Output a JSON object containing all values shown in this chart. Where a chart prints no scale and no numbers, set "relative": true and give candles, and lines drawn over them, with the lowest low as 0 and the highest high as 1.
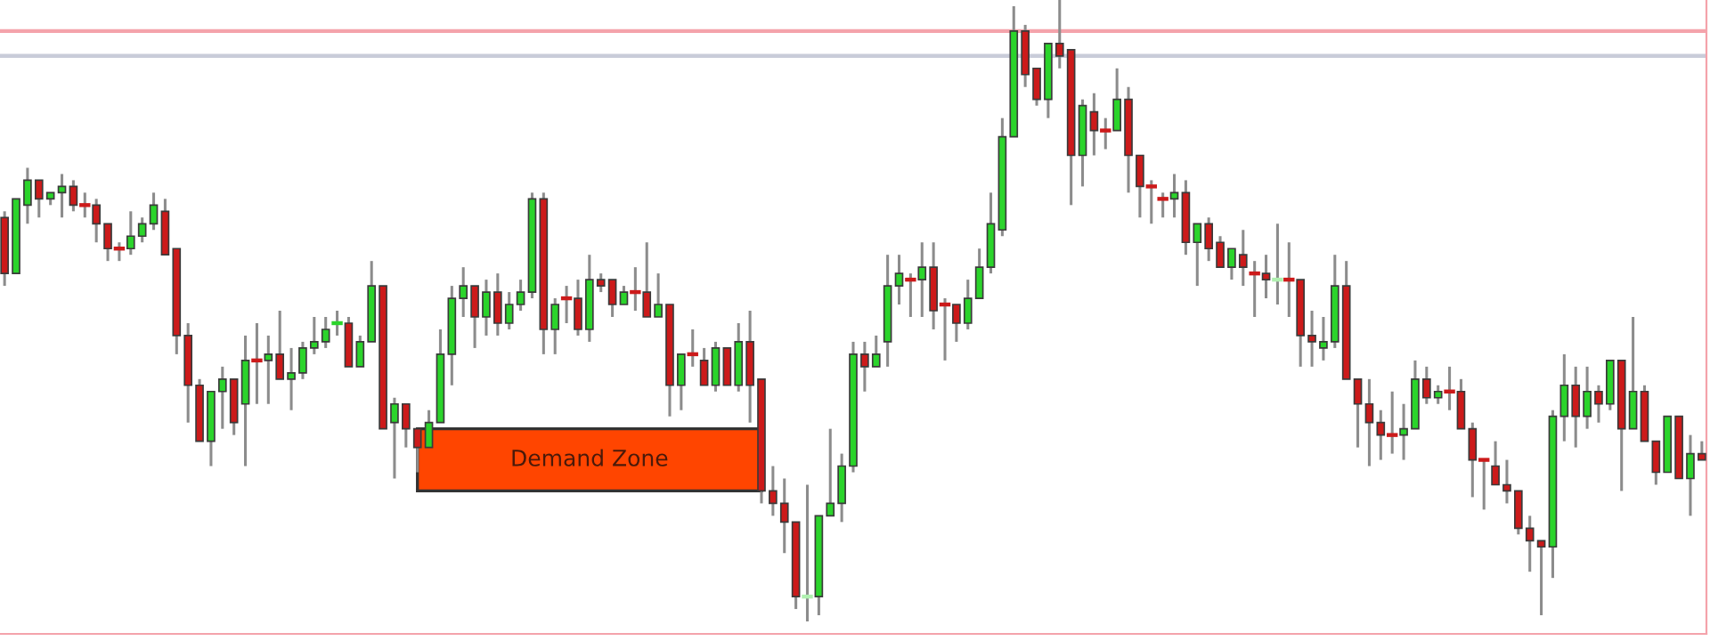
{
  "chart_data": {
    "type": "candlestick",
    "relative": true,
    "categories": [
      null,
      null,
      null,
      null,
      null,
      null,
      null,
      null,
      null,
      null,
      null,
      null,
      null,
      null,
      null,
      null,
      null,
      null,
      null,
      null,
      null,
      null,
      null,
      null,
      null,
      null,
      null,
      null,
      null,
      null,
      null,
      null,
      null,
      null,
      null,
      null,
      null,
      null,
      null,
      null,
      null,
      null,
      null,
      null,
      null,
      null,
      null,
      null,
      null,
      null,
      null,
      null,
      null,
      null,
      null,
      null,
      null,
      null,
      null,
      null,
      null,
      null,
      null,
      null,
      null,
      null,
      null,
      null,
      null,
      null,
      null,
      null,
      null,
      null,
      null,
      null,
      null,
      null,
      null,
      null,
      null,
      null,
      null,
      null,
      null,
      null,
      null,
      null,
      null,
      null,
      null,
      null,
      null,
      null,
      null,
      null,
      null,
      null,
      null,
      null,
      null,
      null,
      null,
      null,
      null,
      null,
      null,
      null,
      null,
      null,
      null,
      null,
      null,
      null,
      null,
      null,
      null,
      null,
      null,
      null,
      null,
      null,
      null,
      null,
      null,
      null,
      null,
      null,
      null,
      null,
      null,
      null,
      null,
      null,
      null,
      null,
      null,
      null,
      null,
      null,
      null,
      null,
      null,
      null,
      null,
      null,
      null,
      null,
      null
    ],
    "ohlc": [
      [
        0.65,
        0.66,
        0.54,
        0.56
      ],
      [
        0.56,
        0.68,
        0.56,
        0.68
      ],
      [
        0.67,
        0.73,
        0.64,
        0.71
      ],
      [
        0.71,
        0.71,
        0.65,
        0.68
      ],
      [
        0.68,
        0.69,
        0.67,
        0.69
      ],
      [
        0.69,
        0.72,
        0.65,
        0.7
      ],
      [
        0.7,
        0.71,
        0.66,
        0.67
      ],
      [
        0.67,
        0.69,
        0.65,
        0.67
      ],
      [
        0.67,
        0.68,
        0.61,
        0.64
      ],
      [
        0.64,
        0.64,
        0.58,
        0.6
      ],
      [
        0.6,
        0.61,
        0.58,
        0.6
      ],
      [
        0.6,
        0.66,
        0.59,
        0.62
      ],
      [
        0.62,
        0.65,
        0.61,
        0.64
      ],
      [
        0.64,
        0.69,
        0.63,
        0.67
      ],
      [
        0.66,
        0.68,
        0.59,
        0.59
      ],
      [
        0.6,
        0.6,
        0.43,
        0.46
      ],
      [
        0.46,
        0.48,
        0.32,
        0.38
      ],
      [
        0.38,
        0.39,
        0.29,
        0.29
      ],
      [
        0.29,
        0.37,
        0.25,
        0.37
      ],
      [
        0.37,
        0.41,
        0.31,
        0.39
      ],
      [
        0.39,
        0.39,
        0.3,
        0.32
      ],
      [
        0.35,
        0.46,
        0.25,
        0.42
      ],
      [
        0.42,
        0.48,
        0.35,
        0.42
      ],
      [
        0.42,
        0.46,
        0.35,
        0.43
      ],
      [
        0.43,
        0.5,
        0.39,
        0.39
      ],
      [
        0.39,
        0.44,
        0.34,
        0.4
      ],
      [
        0.4,
        0.45,
        0.39,
        0.44
      ],
      [
        0.44,
        0.49,
        0.43,
        0.45
      ],
      [
        0.45,
        0.49,
        0.44,
        0.47
      ],
      [
        0.48,
        0.5,
        0.46,
        0.48
      ],
      [
        0.48,
        0.49,
        0.41,
        0.41
      ],
      [
        0.41,
        0.46,
        0.41,
        0.45
      ],
      [
        0.45,
        0.58,
        0.45,
        0.54
      ],
      [
        0.54,
        0.54,
        0.31,
        0.31
      ],
      [
        0.32,
        0.36,
        0.23,
        0.35
      ],
      [
        0.35,
        0.35,
        0.28,
        0.31
      ],
      [
        0.31,
        0.31,
        0.24,
        0.28
      ],
      [
        0.28,
        0.34,
        0.28,
        0.32
      ],
      [
        0.32,
        0.47,
        0.32,
        0.43
      ],
      [
        0.43,
        0.54,
        0.38,
        0.52
      ],
      [
        0.52,
        0.57,
        0.49,
        0.54
      ],
      [
        0.54,
        0.54,
        0.44,
        0.49
      ],
      [
        0.49,
        0.55,
        0.46,
        0.53
      ],
      [
        0.53,
        0.56,
        0.46,
        0.48
      ],
      [
        0.48,
        0.53,
        0.47,
        0.51
      ],
      [
        0.51,
        0.55,
        0.5,
        0.53
      ],
      [
        0.53,
        0.69,
        0.52,
        0.68
      ],
      [
        0.68,
        0.69,
        0.43,
        0.47
      ],
      [
        0.47,
        0.52,
        0.43,
        0.51
      ],
      [
        0.52,
        0.54,
        0.48,
        0.52
      ],
      [
        0.52,
        0.55,
        0.46,
        0.47
      ],
      [
        0.47,
        0.59,
        0.45,
        0.55
      ],
      [
        0.55,
        0.56,
        0.53,
        0.54
      ],
      [
        0.55,
        0.55,
        0.49,
        0.51
      ],
      [
        0.51,
        0.54,
        0.51,
        0.53
      ],
      [
        0.53,
        0.57,
        0.5,
        0.53
      ],
      [
        0.53,
        0.61,
        0.49,
        0.49
      ],
      [
        0.49,
        0.56,
        0.49,
        0.51
      ],
      [
        0.51,
        0.51,
        0.33,
        0.38
      ],
      [
        0.38,
        0.43,
        0.34,
        0.43
      ],
      [
        0.43,
        0.47,
        0.41,
        0.43
      ],
      [
        0.42,
        0.44,
        0.38,
        0.38
      ],
      [
        0.38,
        0.45,
        0.37,
        0.44
      ],
      [
        0.44,
        0.44,
        0.38,
        0.38
      ],
      [
        0.38,
        0.48,
        0.37,
        0.45
      ],
      [
        0.45,
        0.5,
        0.32,
        0.38
      ],
      [
        0.39,
        0.39,
        0.19,
        0.21
      ],
      [
        0.21,
        0.25,
        0.17,
        0.19
      ],
      [
        0.19,
        0.23,
        0.11,
        0.16
      ],
      [
        0.16,
        0.16,
        0.02,
        0.04
      ],
      [
        0.04,
        0.22,
        0,
        0.04
      ],
      [
        0.04,
        0.17,
        0.01,
        0.17
      ],
      [
        0.17,
        0.31,
        0.17,
        0.19
      ],
      [
        0.19,
        0.27,
        0.16,
        0.25
      ],
      [
        0.25,
        0.45,
        0.24,
        0.43
      ],
      [
        0.43,
        0.45,
        0.37,
        0.41
      ],
      [
        0.41,
        0.46,
        0.41,
        0.43
      ],
      [
        0.45,
        0.59,
        0.41,
        0.54
      ],
      [
        0.54,
        0.59,
        0.51,
        0.56
      ],
      [
        0.55,
        0.56,
        0.49,
        0.55
      ],
      [
        0.55,
        0.61,
        0.49,
        0.57
      ],
      [
        0.57,
        0.61,
        0.47,
        0.5
      ],
      [
        0.51,
        0.52,
        0.42,
        0.51
      ],
      [
        0.51,
        0.51,
        0.45,
        0.48
      ],
      [
        0.48,
        0.55,
        0.47,
        0.52
      ],
      [
        0.52,
        0.6,
        0.52,
        0.57
      ],
      [
        0.57,
        0.69,
        0.56,
        0.64
      ],
      [
        0.63,
        0.81,
        0.62,
        0.78
      ],
      [
        0.78,
        0.99,
        0.78,
        0.95
      ],
      [
        0.95,
        0.96,
        0.86,
        0.88
      ],
      [
        0.89,
        0.89,
        0.83,
        0.84
      ],
      [
        0.84,
        0.93,
        0.81,
        0.93
      ],
      [
        0.93,
        1,
        0.89,
        0.91
      ],
      [
        0.92,
        0.92,
        0.67,
        0.75
      ],
      [
        0.75,
        0.84,
        0.7,
        0.83
      ],
      [
        0.82,
        0.85,
        0.75,
        0.79
      ],
      [
        0.79,
        0.81,
        0.76,
        0.79
      ],
      [
        0.79,
        0.89,
        0.79,
        0.84
      ],
      [
        0.84,
        0.86,
        0.69,
        0.75
      ],
      [
        0.75,
        0.75,
        0.65,
        0.7
      ],
      [
        0.7,
        0.71,
        0.64,
        0.7
      ],
      [
        0.68,
        0.69,
        0.65,
        0.68
      ],
      [
        0.68,
        0.72,
        0.65,
        0.69
      ],
      [
        0.69,
        0.71,
        0.59,
        0.61
      ],
      [
        0.61,
        0.64,
        0.54,
        0.64
      ],
      [
        0.64,
        0.65,
        0.58,
        0.6
      ],
      [
        0.61,
        0.62,
        0.57,
        0.57
      ],
      [
        0.57,
        0.6,
        0.55,
        0.6
      ],
      [
        0.59,
        0.63,
        0.54,
        0.57
      ],
      [
        0.56,
        0.58,
        0.49,
        0.56
      ],
      [
        0.56,
        0.59,
        0.52,
        0.55
      ],
      [
        0.55,
        0.64,
        0.51,
        0.55
      ],
      [
        0.55,
        0.61,
        0.49,
        0.55
      ],
      [
        0.55,
        0.55,
        0.41,
        0.46
      ],
      [
        0.46,
        0.5,
        0.41,
        0.45
      ],
      [
        0.44,
        0.49,
        0.42,
        0.45
      ],
      [
        0.45,
        0.59,
        0.44,
        0.54
      ],
      [
        0.54,
        0.58,
        0.39,
        0.39
      ],
      [
        0.39,
        0.39,
        0.28,
        0.35
      ],
      [
        0.35,
        0.39,
        0.25,
        0.32
      ],
      [
        0.32,
        0.34,
        0.26,
        0.3
      ],
      [
        0.3,
        0.37,
        0.27,
        0.3
      ],
      [
        0.3,
        0.35,
        0.26,
        0.31
      ],
      [
        0.31,
        0.42,
        0.31,
        0.39
      ],
      [
        0.39,
        0.41,
        0.35,
        0.36
      ],
      [
        0.36,
        0.38,
        0.35,
        0.37
      ],
      [
        0.37,
        0.41,
        0.34,
        0.37
      ],
      [
        0.37,
        0.39,
        0.31,
        0.31
      ],
      [
        0.31,
        0.32,
        0.2,
        0.26
      ],
      [
        0.26,
        0.26,
        0.18,
        0.26
      ],
      [
        0.25,
        0.29,
        0.22,
        0.22
      ],
      [
        0.22,
        0.26,
        0.19,
        0.21
      ],
      [
        0.21,
        0.21,
        0.14,
        0.15
      ],
      [
        0.15,
        0.17,
        0.08,
        0.13
      ],
      [
        0.13,
        0.13,
        0.01,
        0.12
      ],
      [
        0.12,
        0.34,
        0.07,
        0.33
      ],
      [
        0.33,
        0.43,
        0.29,
        0.38
      ],
      [
        0.38,
        0.41,
        0.28,
        0.33
      ],
      [
        0.33,
        0.41,
        0.31,
        0.37
      ],
      [
        0.37,
        0.38,
        0.32,
        0.35
      ],
      [
        0.35,
        0.42,
        0.34,
        0.42
      ],
      [
        0.42,
        0.42,
        0.21,
        0.31
      ],
      [
        0.31,
        0.49,
        0.31,
        0.37
      ],
      [
        0.37,
        0.38,
        0.29,
        0.29
      ],
      [
        0.29,
        0.29,
        0.22,
        0.24
      ],
      [
        0.24,
        0.33,
        0.24,
        0.33
      ],
      [
        0.33,
        0.33,
        0.23,
        0.23
      ],
      [
        0.23,
        0.3,
        0.17,
        0.27
      ],
      [
        0.27,
        0.29,
        0.26,
        0.26
      ]
    ],
    "colors": [
      "#cc1a1a",
      "#2bd42b",
      "#2bd42b",
      "#cc1a1a",
      "#2bd42b",
      "#2bd42b",
      "#cc1a1a",
      "#cc1a1a",
      "#cc1a1a",
      "#cc1a1a",
      "#cc1a1a",
      "#2bd42b",
      "#2bd42b",
      "#2bd42b",
      "#cc1a1a",
      "#cc1a1a",
      "#cc1a1a",
      "#cc1a1a",
      "#2bd42b",
      "#2bd42b",
      "#cc1a1a",
      "#2bd42b",
      "#cc1a1a",
      "#2bd42b",
      "#cc1a1a",
      "#2bd42b",
      "#2bd42b",
      "#2bd42b",
      "#2bd42b",
      "#2bd42b",
      "#cc1a1a",
      "#2bd42b",
      "#2bd42b",
      "#cc1a1a",
      "#2bd42b",
      "#cc1a1a",
      "#cc1a1a",
      "#2bd42b",
      "#2bd42b",
      "#2bd42b",
      "#2bd42b",
      "#cc1a1a",
      "#2bd42b",
      "#cc1a1a",
      "#2bd42b",
      "#2bd42b",
      "#2bd42b",
      "#cc1a1a",
      "#2bd42b",
      "#cc1a1a",
      "#cc1a1a",
      "#2bd42b",
      "#cc1a1a",
      "#cc1a1a",
      "#2bd42b",
      "#cc1a1a",
      "#cc1a1a",
      "#2bd42b",
      "#cc1a1a",
      "#2bd42b",
      "#cc1a1a",
      "#cc1a1a",
      "#2bd42b",
      "#cc1a1a",
      "#2bd42b",
      "#cc1a1a",
      "#cc1a1a",
      "#cc1a1a",
      "#cc1a1a",
      "#cc1a1a",
      "#b0f0b0",
      "#2bd42b",
      "#2bd42b",
      "#2bd42b",
      "#2bd42b",
      "#cc1a1a",
      "#2bd42b",
      "#2bd42b",
      "#2bd42b",
      "#cc1a1a",
      "#2bd42b",
      "#cc1a1a",
      "#cc1a1a",
      "#cc1a1a",
      "#2bd42b",
      "#2bd42b",
      "#2bd42b",
      "#2bd42b",
      "#2bd42b",
      "#cc1a1a",
      "#cc1a1a",
      "#2bd42b",
      "#cc1a1a",
      "#cc1a1a",
      "#2bd42b",
      "#cc1a1a",
      "#cc1a1a",
      "#2bd42b",
      "#cc1a1a",
      "#cc1a1a",
      "#cc1a1a",
      "#cc1a1a",
      "#2bd42b",
      "#cc1a1a",
      "#2bd42b",
      "#cc1a1a",
      "#cc1a1a",
      "#2bd42b",
      "#cc1a1a",
      "#cc1a1a",
      "#cc1a1a",
      "#b0f0b0",
      "#cc1a1a",
      "#cc1a1a",
      "#cc1a1a",
      "#2bd42b",
      "#2bd42b",
      "#cc1a1a",
      "#cc1a1a",
      "#cc1a1a",
      "#cc1a1a",
      "#cc1a1a",
      "#2bd42b",
      "#2bd42b",
      "#cc1a1a",
      "#2bd42b",
      "#cc1a1a",
      "#cc1a1a",
      "#cc1a1a",
      "#cc1a1a",
      "#cc1a1a",
      "#cc1a1a",
      "#cc1a1a",
      "#cc1a1a",
      "#cc1a1a",
      "#2bd42b",
      "#2bd42b",
      "#cc1a1a",
      "#2bd42b",
      "#cc1a1a",
      "#2bd42b",
      "#cc1a1a",
      "#2bd42b",
      "#cc1a1a",
      "#cc1a1a",
      "#2bd42b",
      "#cc1a1a",
      "#2bd42b",
      "#cc1a1a"
    ],
    "ref_lines": [
      {
        "axis": "y",
        "value": 0.95,
        "color": "#f4a3ab"
      },
      {
        "axis": "y",
        "value": 0.91,
        "color": "#c9ccd9"
      }
    ],
    "bands": [
      {
        "axis": "y",
        "from": 0.21,
        "to": 0.31,
        "label": "Demand Zone",
        "color": "#ff4500"
      }
    ],
    "grid": false
  }
}
